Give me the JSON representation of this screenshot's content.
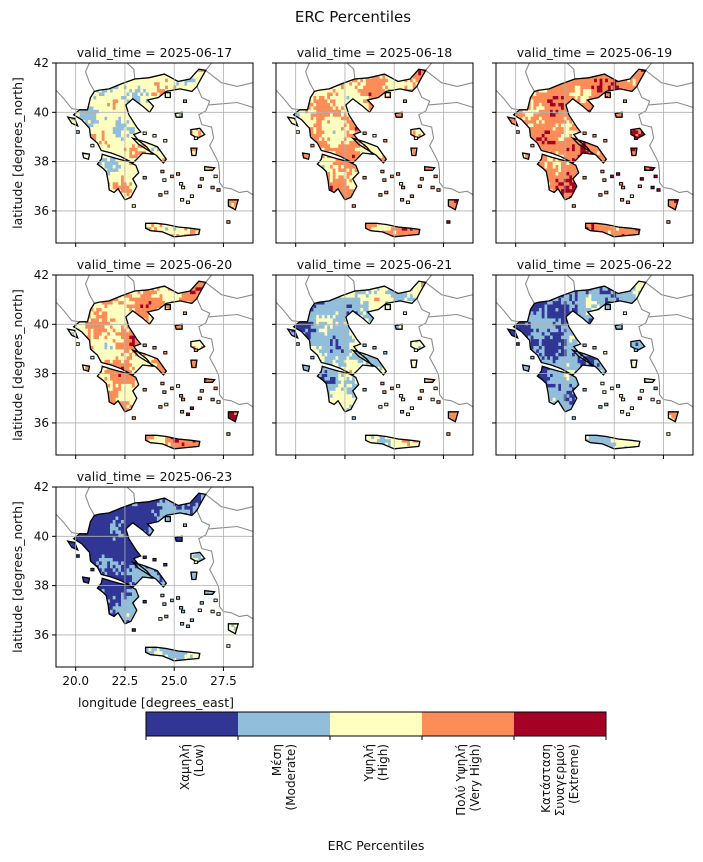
{
  "figure": {
    "title": "ERC Percentiles",
    "ylabel": "latitude [degrees_north]",
    "xlabel": "longitude [degrees_east]"
  },
  "axes": {
    "x_ticks": [
      "20.0",
      "22.5",
      "25.0",
      "27.5"
    ],
    "y_ticks": [
      "42",
      "40",
      "38",
      "36"
    ],
    "lon_range": [
      19.0,
      29.0
    ],
    "lat_range": [
      34.7,
      42.0
    ],
    "grid": true
  },
  "panels": [
    {
      "title": "valid_time = 2025-06-17",
      "dominant": "mixed-high"
    },
    {
      "title": "valid_time = 2025-06-18",
      "dominant": "high"
    },
    {
      "title": "valid_time = 2025-06-19",
      "dominant": "very-high"
    },
    {
      "title": "valid_time = 2025-06-20",
      "dominant": "high"
    },
    {
      "title": "valid_time = 2025-06-21",
      "dominant": "moderate"
    },
    {
      "title": "valid_time = 2025-06-22",
      "dominant": "low-moderate"
    },
    {
      "title": "valid_time = 2025-06-23",
      "dominant": "low"
    }
  ],
  "colorbar": {
    "label": "ERC Percentiles",
    "categories": [
      {
        "label": "Χαμηλή\n(Low)",
        "color": "#313695"
      },
      {
        "label": "Μέση\n(Moderate)",
        "color": "#91bfdb"
      },
      {
        "label": "Υψηλή\n(High)",
        "color": "#ffffbf"
      },
      {
        "label": "Πολύ Υψηλή\n(Very High)",
        "color": "#fc8d59"
      },
      {
        "label": "Κατάσταση\nΣυναγερμού\n(Extreme)",
        "color": "#a50026"
      }
    ]
  }
}
